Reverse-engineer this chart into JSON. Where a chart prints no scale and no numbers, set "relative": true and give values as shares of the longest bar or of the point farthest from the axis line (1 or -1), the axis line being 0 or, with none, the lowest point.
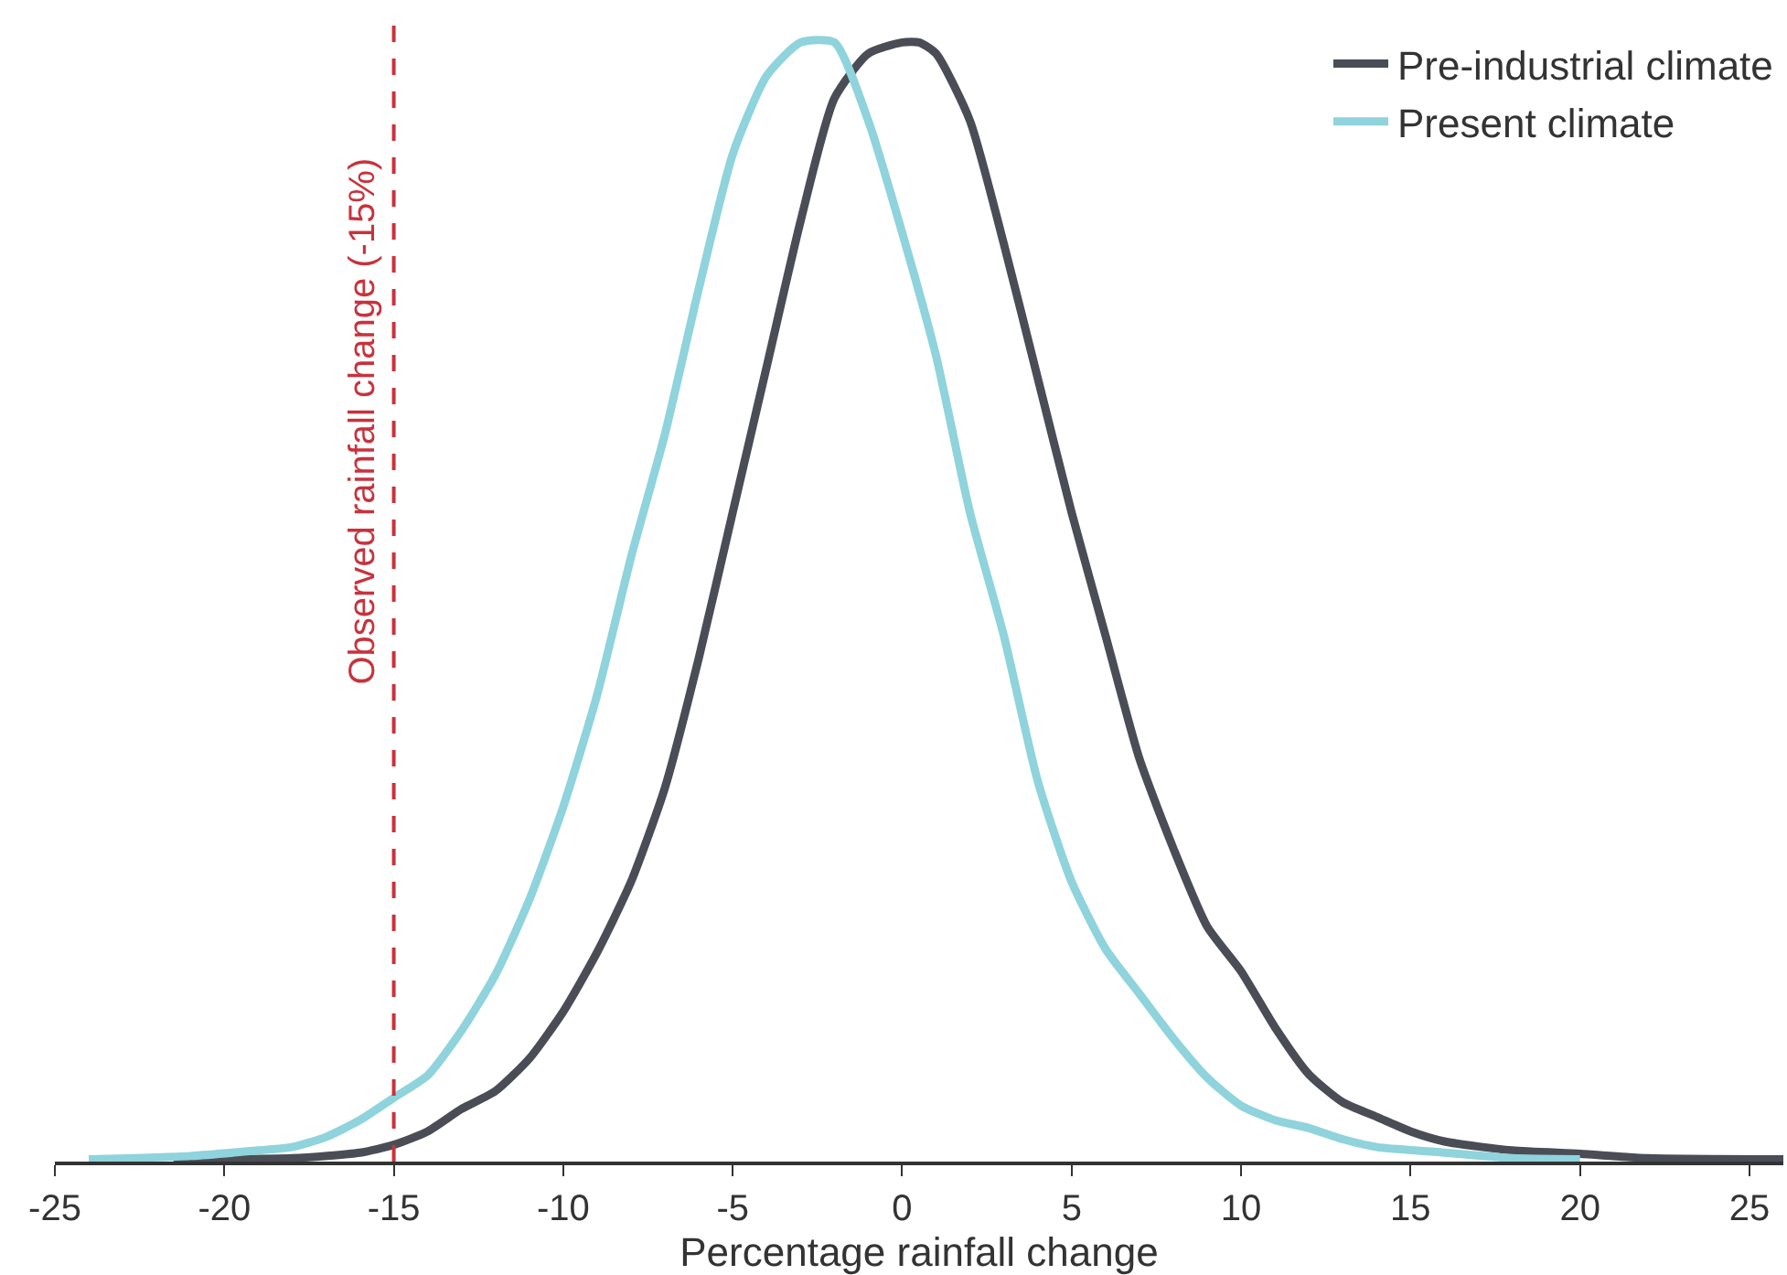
{
  "chart_data": {
    "type": "line",
    "relative": true,
    "xlabel": "Percentage rainfall change",
    "xlim": [
      -25,
      26
    ],
    "xticks": [
      -25,
      -20,
      -15,
      -10,
      -5,
      0,
      5,
      10,
      15,
      20,
      25
    ],
    "grid": false,
    "legend": "top right",
    "marker": "none",
    "line_style": "solid",
    "series": [
      {
        "name": "Pre-industrial climate",
        "color": "#4a4d55",
        "x": [
          -21.5,
          -18,
          -16,
          -15,
          -14,
          -13,
          -12,
          -11,
          -10,
          -9,
          -8,
          -7,
          -6,
          -5,
          -4,
          -3,
          -2,
          -1,
          0,
          0.5,
          1,
          2,
          3,
          4,
          5,
          6,
          7,
          8,
          9,
          10,
          11,
          12,
          13,
          14,
          15,
          16,
          18,
          20,
          22,
          26
        ],
        "values": [
          0.002,
          0.003,
          0.008,
          0.015,
          0.027,
          0.047,
          0.063,
          0.092,
          0.134,
          0.187,
          0.25,
          0.334,
          0.45,
          0.58,
          0.71,
          0.84,
          0.95,
          0.99,
          1.0,
          1.0,
          0.99,
          0.93,
          0.82,
          0.7,
          0.58,
          0.47,
          0.36,
          0.28,
          0.21,
          0.17,
          0.12,
          0.078,
          0.053,
          0.04,
          0.027,
          0.018,
          0.01,
          0.007,
          0.003,
          0.002
        ]
      },
      {
        "name": "Present climate",
        "color": "#8fd3dc",
        "x": [
          -24,
          -21,
          -19,
          -18,
          -17,
          -16,
          -15,
          -14,
          -13,
          -12,
          -11,
          -10,
          -9,
          -8,
          -7,
          -6,
          -5,
          -4,
          -3,
          -2,
          -1,
          0,
          1,
          2,
          3,
          4,
          5,
          6,
          7,
          8,
          9,
          10,
          11,
          12,
          13,
          14,
          16,
          18,
          20
        ],
        "values": [
          0.002,
          0.005,
          0.01,
          0.013,
          0.022,
          0.037,
          0.057,
          0.077,
          0.117,
          0.167,
          0.234,
          0.317,
          0.417,
          0.54,
          0.65,
          0.78,
          0.9,
          0.97,
          1.0,
          1.0,
          0.93,
          0.83,
          0.72,
          0.58,
          0.47,
          0.34,
          0.25,
          0.19,
          0.15,
          0.11,
          0.075,
          0.05,
          0.037,
          0.03,
          0.02,
          0.013,
          0.008,
          0.003,
          0.002
        ]
      }
    ],
    "ref_lines": [
      {
        "axis": "x",
        "value": -15,
        "label": "Observed rainfall change (-15%)",
        "color": "#c8323c",
        "line_style": "dashed"
      }
    ]
  }
}
